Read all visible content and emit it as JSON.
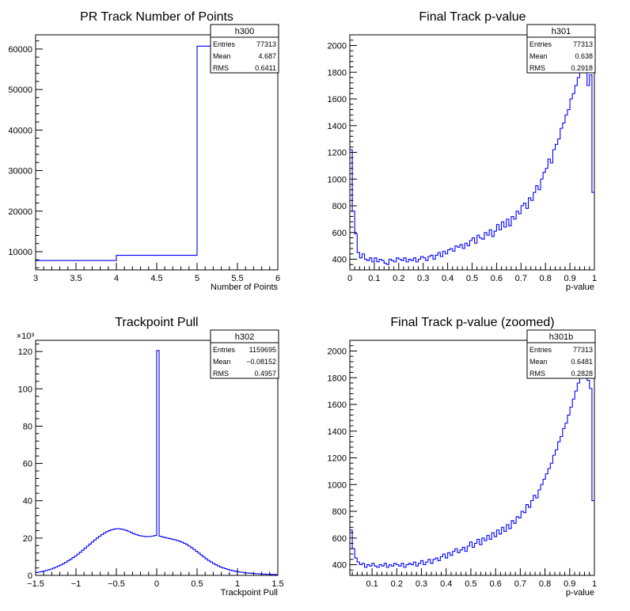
{
  "chart_data": [
    {
      "type": "histogram",
      "title": "PR Track Number of Points",
      "xlabel": "Number of Points",
      "ylabel": "",
      "xlim": [
        3,
        6
      ],
      "ylim": [
        5500,
        63500
      ],
      "x_ticks": [
        3,
        3.5,
        4,
        4.5,
        5,
        5.5,
        6
      ],
      "y_ticks": [
        10000,
        20000,
        30000,
        40000,
        50000,
        60000
      ],
      "y_multiplier": "",
      "line_color": "#0000ff",
      "stats": {
        "name": "h300",
        "rows": [
          [
            "Entries",
            "77313"
          ],
          [
            "Mean",
            "4.687"
          ],
          [
            "RMS",
            "0.6411"
          ]
        ]
      },
      "bin_width": 1,
      "x": [
        3,
        4,
        5
      ],
      "values": [
        7800,
        9100,
        60700
      ]
    },
    {
      "type": "histogram",
      "title": "Final Track p-value",
      "xlabel": "p-value",
      "ylabel": "",
      "xlim": [
        0,
        1
      ],
      "ylim": [
        320,
        2080
      ],
      "x_ticks": [
        0,
        0.1,
        0.2,
        0.3,
        0.4,
        0.5,
        0.6,
        0.7,
        0.8,
        0.9,
        1
      ],
      "y_ticks": [
        400,
        600,
        800,
        1000,
        1200,
        1400,
        1600,
        1800,
        2000
      ],
      "y_multiplier": "",
      "line_color": "#0000ff",
      "stats": {
        "name": "h301",
        "rows": [
          [
            "Entries",
            "77313"
          ],
          [
            "Mean",
            "0.638"
          ],
          [
            "RMS",
            "0.2918"
          ]
        ]
      },
      "bin_width": 0.01,
      "x": [
        0.0,
        0.01,
        0.02,
        0.03,
        0.04,
        0.05,
        0.06,
        0.07,
        0.08,
        0.09,
        0.1,
        0.11,
        0.12,
        0.13,
        0.14,
        0.15,
        0.16,
        0.17,
        0.18,
        0.19,
        0.2,
        0.21,
        0.22,
        0.23,
        0.24,
        0.25,
        0.26,
        0.27,
        0.28,
        0.29,
        0.3,
        0.31,
        0.32,
        0.33,
        0.34,
        0.35,
        0.36,
        0.37,
        0.38,
        0.39,
        0.4,
        0.41,
        0.42,
        0.43,
        0.44,
        0.45,
        0.46,
        0.47,
        0.48,
        0.49,
        0.5,
        0.51,
        0.52,
        0.53,
        0.54,
        0.55,
        0.56,
        0.57,
        0.58,
        0.59,
        0.6,
        0.61,
        0.62,
        0.63,
        0.64,
        0.65,
        0.66,
        0.67,
        0.68,
        0.69,
        0.7,
        0.71,
        0.72,
        0.73,
        0.74,
        0.75,
        0.76,
        0.77,
        0.78,
        0.79,
        0.8,
        0.81,
        0.82,
        0.83,
        0.84,
        0.85,
        0.86,
        0.87,
        0.88,
        0.89,
        0.9,
        0.91,
        0.92,
        0.93,
        0.94,
        0.95,
        0.96,
        0.97,
        0.98,
        0.99
      ],
      "values": [
        1220,
        760,
        590,
        450,
        410,
        440,
        400,
        390,
        410,
        380,
        410,
        380,
        400,
        390,
        370,
        360,
        400,
        390,
        380,
        410,
        400,
        390,
        410,
        380,
        400,
        390,
        410,
        380,
        400,
        420,
        410,
        390,
        420,
        430,
        400,
        430,
        450,
        420,
        460,
        440,
        470,
        480,
        460,
        500,
        490,
        510,
        480,
        520,
        500,
        540,
        560,
        520,
        580,
        560,
        550,
        600,
        580,
        620,
        570,
        610,
        660,
        620,
        680,
        640,
        700,
        650,
        720,
        700,
        760,
        740,
        800,
        820,
        780,
        860,
        840,
        900,
        950,
        920,
        1000,
        1050,
        1080,
        1150,
        1120,
        1220,
        1260,
        1300,
        1380,
        1420,
        1480,
        1520,
        1600,
        1640,
        1700,
        1760,
        1840,
        1900,
        2000,
        1700,
        1780,
        900
      ]
    },
    {
      "type": "histogram",
      "title": "Trackpoint Pull",
      "xlabel": "Trackpoint Pull",
      "ylabel": "",
      "xlim": [
        -1.5,
        1.5
      ],
      "ylim": [
        0,
        126
      ],
      "x_ticks": [
        -1.5,
        -1,
        -0.5,
        0,
        0.5,
        1,
        1.5
      ],
      "y_ticks": [
        0,
        20,
        40,
        60,
        80,
        100,
        120
      ],
      "y_multiplier": "×10³",
      "line_color": "#0000ff",
      "stats": {
        "name": "h302",
        "rows": [
          [
            "Entries",
            "1159695"
          ],
          [
            "Mean",
            "−0.08152"
          ],
          [
            "RMS",
            "0.4957"
          ]
        ]
      },
      "bin_width": 0.03,
      "x": [
        -1.5,
        -1.47,
        -1.44,
        -1.41,
        -1.38,
        -1.35,
        -1.32,
        -1.29,
        -1.26,
        -1.23,
        -1.2,
        -1.17,
        -1.14,
        -1.11,
        -1.08,
        -1.05,
        -1.02,
        -0.99,
        -0.96,
        -0.93,
        -0.9,
        -0.87,
        -0.84,
        -0.81,
        -0.78,
        -0.75,
        -0.72,
        -0.69,
        -0.66,
        -0.63,
        -0.6,
        -0.57,
        -0.54,
        -0.51,
        -0.48,
        -0.45,
        -0.42,
        -0.39,
        -0.36,
        -0.33,
        -0.3,
        -0.27,
        -0.24,
        -0.21,
        -0.18,
        -0.15,
        -0.12,
        -0.09,
        -0.06,
        -0.03,
        0.0,
        0.03,
        0.06,
        0.09,
        0.12,
        0.15,
        0.18,
        0.21,
        0.24,
        0.27,
        0.3,
        0.33,
        0.36,
        0.39,
        0.42,
        0.45,
        0.48,
        0.51,
        0.54,
        0.57,
        0.6,
        0.63,
        0.66,
        0.69,
        0.72,
        0.75,
        0.78,
        0.81,
        0.84,
        0.87,
        0.9,
        0.93,
        0.96,
        0.99,
        1.02,
        1.05,
        1.08,
        1.11,
        1.14,
        1.17,
        1.2,
        1.23,
        1.26,
        1.29,
        1.32,
        1.35,
        1.38,
        1.41,
        1.44,
        1.47
      ],
      "values": [
        1.5,
        1.8,
        2.0,
        2.3,
        2.6,
        3.0,
        3.4,
        3.9,
        4.4,
        5.0,
        5.6,
        6.3,
        7.0,
        7.8,
        8.6,
        9.5,
        10.4,
        11.4,
        12.4,
        13.5,
        14.6,
        15.7,
        16.8,
        17.9,
        19.0,
        20.0,
        21.0,
        21.9,
        22.7,
        23.4,
        24.0,
        24.5,
        24.8,
        25.0,
        25.0,
        24.8,
        24.5,
        24.1,
        23.6,
        23.0,
        22.4,
        21.9,
        21.5,
        21.2,
        21.0,
        20.8,
        20.8,
        20.9,
        21.1,
        21.4,
        120.5,
        21.0,
        20.6,
        20.3,
        20.0,
        19.7,
        19.4,
        19.1,
        18.7,
        18.3,
        17.8,
        17.2,
        16.5,
        15.7,
        14.8,
        13.9,
        12.9,
        11.9,
        10.9,
        9.9,
        8.9,
        8.0,
        7.2,
        6.4,
        5.7,
        5.1,
        4.5,
        4.0,
        3.6,
        3.2,
        2.8,
        2.5,
        2.2,
        2.0,
        1.8,
        1.6,
        1.4,
        1.3,
        1.2,
        1.1,
        1.0,
        0.9,
        0.8,
        0.7,
        0.7,
        0.6,
        0.6,
        0.5,
        0.5,
        0.4
      ]
    },
    {
      "type": "histogram",
      "title": "Final Track p-value (zoomed)",
      "xlabel": "p-value",
      "ylabel": "",
      "xlim": [
        0.01,
        1
      ],
      "ylim": [
        320,
        2080
      ],
      "x_ticks": [
        0.1,
        0.2,
        0.3,
        0.4,
        0.5,
        0.6,
        0.7,
        0.8,
        0.9,
        1
      ],
      "y_ticks": [
        400,
        600,
        800,
        1000,
        1200,
        1400,
        1600,
        1800,
        2000
      ],
      "y_multiplier": "",
      "line_color": "#0000ff",
      "stats": {
        "name": "h301b",
        "rows": [
          [
            "Entries",
            "77313"
          ],
          [
            "Mean",
            "0.6481"
          ],
          [
            "RMS",
            "0.2828"
          ]
        ]
      },
      "bin_width": 0.0099,
      "x": [
        0.01,
        0.0199,
        0.0298,
        0.0397,
        0.0496,
        0.0595,
        0.0694,
        0.0793,
        0.0892,
        0.0991,
        0.109,
        0.1189,
        0.1288,
        0.1387,
        0.1486,
        0.1585,
        0.1684,
        0.1783,
        0.1882,
        0.1981,
        0.208,
        0.2179,
        0.2278,
        0.2377,
        0.2476,
        0.2575,
        0.2674,
        0.2773,
        0.2872,
        0.2971,
        0.307,
        0.3169,
        0.3268,
        0.3367,
        0.3466,
        0.3565,
        0.3664,
        0.3763,
        0.3862,
        0.3961,
        0.406,
        0.4159,
        0.4258,
        0.4357,
        0.4456,
        0.4555,
        0.4654,
        0.4753,
        0.4852,
        0.4951,
        0.505,
        0.5149,
        0.5248,
        0.5347,
        0.5446,
        0.5545,
        0.5644,
        0.5743,
        0.5842,
        0.5941,
        0.604,
        0.6139,
        0.6238,
        0.6337,
        0.6436,
        0.6535,
        0.6634,
        0.6733,
        0.6832,
        0.6931,
        0.703,
        0.7129,
        0.7228,
        0.7327,
        0.7426,
        0.7525,
        0.7624,
        0.7723,
        0.7822,
        0.7921,
        0.802,
        0.8119,
        0.8218,
        0.8317,
        0.8416,
        0.8515,
        0.8614,
        0.8713,
        0.8812,
        0.8911,
        0.901,
        0.9109,
        0.9208,
        0.9307,
        0.9406,
        0.9505,
        0.9604,
        0.9703,
        0.9802,
        0.9901
      ],
      "values": [
        660,
        520,
        450,
        420,
        400,
        410,
        380,
        400,
        390,
        410,
        390,
        380,
        400,
        390,
        410,
        380,
        400,
        390,
        410,
        400,
        390,
        410,
        380,
        400,
        410,
        400,
        420,
        390,
        410,
        430,
        400,
        420,
        440,
        410,
        440,
        450,
        430,
        460,
        480,
        450,
        490,
        470,
        500,
        520,
        490,
        510,
        530,
        500,
        540,
        570,
        530,
        560,
        590,
        550,
        600,
        580,
        620,
        590,
        640,
        610,
        660,
        630,
        680,
        650,
        700,
        670,
        730,
        710,
        760,
        750,
        800,
        790,
        850,
        830,
        880,
        920,
        900,
        960,
        1000,
        1040,
        1080,
        1120,
        1160,
        1220,
        1260,
        1320,
        1360,
        1420,
        1460,
        1520,
        1580,
        1640,
        1700,
        1760,
        1820,
        1900,
        2000,
        1780,
        1720,
        880
      ]
    }
  ]
}
